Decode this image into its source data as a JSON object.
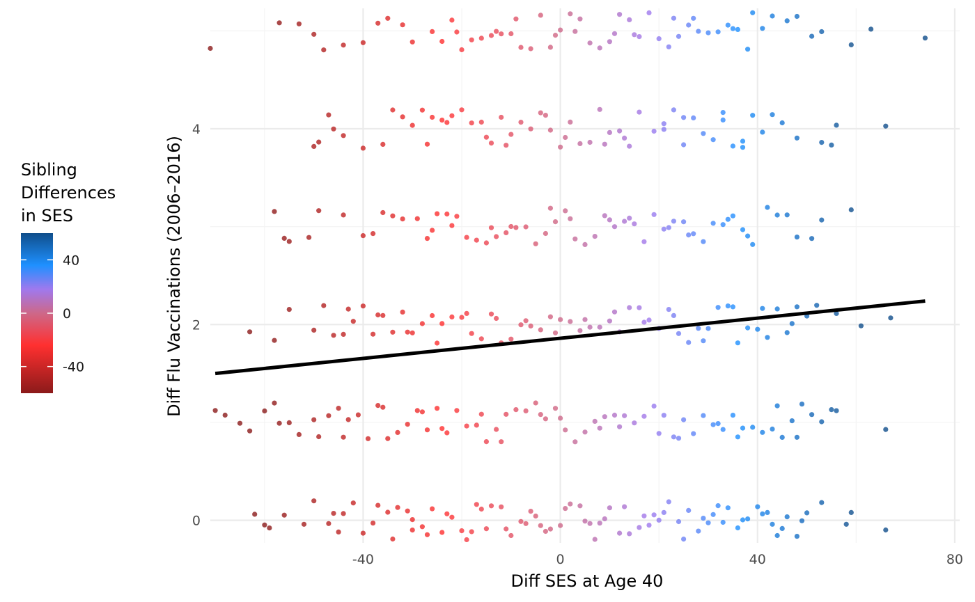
{
  "chart_data": {
    "type": "scatter",
    "title": "",
    "xlabel": "Diff SES at Age 40",
    "ylabel": "Diff Flu Vaccinations (2006–2016)",
    "xlim": [
      -71,
      81
    ],
    "ylim": [
      -0.23,
      5.23
    ],
    "x_ticks": [
      -40,
      0,
      40,
      80
    ],
    "x_tick_labels": [
      "-40",
      "0",
      "40",
      "80"
    ],
    "y_ticks": [
      0,
      2,
      4
    ],
    "y_tick_labels": [
      "0",
      "2",
      "4"
    ],
    "grid": true,
    "jitter_height": 0.2,
    "point_alpha": 0.8,
    "trend_line": {
      "type": "linear_fit",
      "x": [
        -70,
        74
      ],
      "y": [
        1.5,
        2.24
      ],
      "color": "#000000"
    },
    "legend": {
      "title_lines": [
        "Sibling",
        "Differences",
        "in SES"
      ],
      "type": "colorbar",
      "position": "left",
      "range": [
        -60,
        60
      ],
      "ticks": [
        -40,
        0,
        40
      ],
      "tick_labels": [
        "-40",
        "0",
        "40"
      ],
      "colors": {
        "low": "#8b1a1a",
        "mid_low": "#ff3030",
        "mid": "#cd6889",
        "mid_high": "#9f79ee",
        "high_mid": "#1e90ff",
        "high": "#104e8b"
      }
    },
    "series": [
      {
        "name": "y=0",
        "y_level": 0,
        "x": [
          -62,
          -59,
          -56,
          -50,
          -46,
          -44,
          -40,
          -37,
          -35,
          -33,
          -31,
          -28,
          -26,
          -24,
          -22,
          -20,
          -18,
          -16,
          -14,
          -12,
          -10,
          -8,
          -6,
          -4,
          -2,
          0,
          2,
          4,
          6,
          8,
          10,
          12,
          14,
          16,
          18,
          20,
          22,
          24,
          26,
          28,
          30,
          32,
          34,
          36,
          38,
          40,
          42,
          44,
          46,
          48,
          50,
          58,
          59,
          66,
          -60,
          -52,
          -47,
          -42,
          -38,
          -34,
          -30,
          -27,
          -23,
          -19,
          -15,
          -11,
          -7,
          -3,
          1,
          5,
          9,
          13,
          17,
          21,
          25,
          29,
          33,
          37,
          41,
          45,
          49,
          53,
          -45,
          -30,
          -17,
          -5,
          7,
          19,
          31,
          43
        ]
      },
      {
        "name": "y=1",
        "y_level": 1,
        "x": [
          -70,
          -68,
          -63,
          -60,
          -58,
          -55,
          -53,
          -50,
          -47,
          -45,
          -43,
          -41,
          -39,
          -37,
          -35,
          -33,
          -31,
          -29,
          -27,
          -25,
          -23,
          -21,
          -19,
          -17,
          -15,
          -13,
          -11,
          -9,
          -7,
          -5,
          -3,
          -1,
          1,
          3,
          5,
          7,
          9,
          11,
          13,
          15,
          17,
          19,
          21,
          23,
          25,
          27,
          29,
          31,
          33,
          35,
          37,
          39,
          41,
          43,
          45,
          47,
          49,
          51,
          53,
          55,
          56,
          66,
          -65,
          -57,
          -49,
          -36,
          -24,
          -12,
          0,
          12,
          24,
          36,
          48,
          -44,
          -28,
          -16,
          -4,
          8,
          20,
          32,
          44
        ]
      },
      {
        "name": "y=2",
        "y_level": 2,
        "x": [
          -63,
          -58,
          -55,
          -50,
          -48,
          -46,
          -44,
          -42,
          -40,
          -38,
          -36,
          -34,
          -32,
          -30,
          -28,
          -26,
          -24,
          -22,
          -20,
          -18,
          -16,
          -14,
          -12,
          -10,
          -8,
          -6,
          -4,
          -2,
          0,
          2,
          4,
          6,
          8,
          10,
          12,
          14,
          16,
          18,
          20,
          22,
          24,
          26,
          28,
          30,
          32,
          34,
          36,
          38,
          40,
          42,
          44,
          46,
          48,
          50,
          52,
          56,
          61,
          67,
          -43,
          -31,
          -19,
          -7,
          5,
          17,
          29,
          41,
          -37,
          -25,
          -13,
          -1,
          11,
          23,
          35,
          47
        ]
      },
      {
        "name": "y=3",
        "y_level": 3,
        "x": [
          -58,
          -56,
          -55,
          -51,
          -49,
          -44,
          -40,
          -38,
          -36,
          -34,
          -32,
          -29,
          -27,
          -25,
          -23,
          -21,
          -19,
          -17,
          -15,
          -13,
          -11,
          -9,
          -7,
          -5,
          -3,
          -1,
          1,
          3,
          5,
          7,
          9,
          11,
          13,
          15,
          17,
          19,
          21,
          23,
          25,
          27,
          29,
          31,
          33,
          35,
          37,
          39,
          42,
          44,
          46,
          48,
          51,
          53,
          59,
          -26,
          -14,
          -2,
          10,
          22,
          34,
          -22,
          -10,
          2,
          14,
          26,
          38
        ]
      },
      {
        "name": "y=4",
        "y_level": 4,
        "x": [
          -50,
          -49,
          -47,
          -46,
          -44,
          -40,
          -36,
          -34,
          -32,
          -30,
          -28,
          -26,
          -24,
          -22,
          -20,
          -18,
          -16,
          -14,
          -12,
          -10,
          -8,
          -6,
          -4,
          -2,
          0,
          2,
          4,
          6,
          8,
          10,
          12,
          14,
          16,
          19,
          21,
          23,
          25,
          27,
          29,
          31,
          33,
          35,
          37,
          39,
          41,
          43,
          45,
          48,
          53,
          55,
          56,
          66,
          -23,
          -11,
          1,
          13,
          25,
          37,
          -27,
          -15,
          -3,
          9,
          21,
          33
        ]
      },
      {
        "name": "y=5",
        "y_level": 5,
        "x": [
          -71,
          -57,
          -53,
          -50,
          -48,
          -44,
          -40,
          -37,
          -35,
          -32,
          -30,
          -26,
          -24,
          -22,
          -20,
          -18,
          -16,
          -14,
          -12,
          -10,
          -8,
          -6,
          -4,
          -2,
          0,
          2,
          4,
          6,
          8,
          10,
          12,
          14,
          16,
          18,
          20,
          22,
          24,
          26,
          28,
          30,
          32,
          34,
          36,
          38,
          41,
          43,
          46,
          48,
          51,
          53,
          59,
          63,
          74,
          -21,
          -9,
          3,
          15,
          27,
          39,
          -13,
          -1,
          11,
          23,
          35
        ]
      }
    ]
  }
}
